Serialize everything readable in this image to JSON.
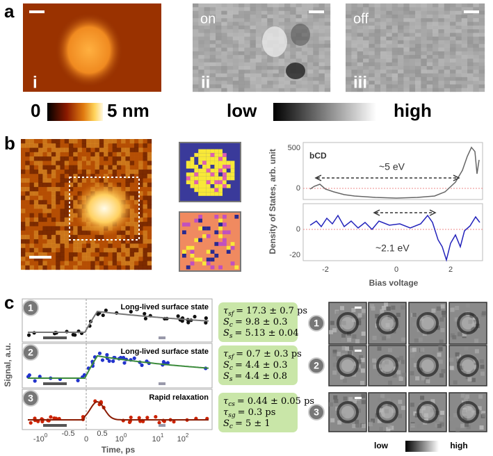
{
  "panel_a": {
    "label": "a",
    "images": [
      {
        "numeral": "i"
      },
      {
        "numeral": "ii",
        "state": "on"
      },
      {
        "numeral": "iii",
        "state": "off"
      }
    ],
    "colorbars": [
      {
        "min": "0",
        "max": "5 nm"
      },
      {
        "min": "low",
        "max": "high"
      }
    ]
  },
  "panel_b": {
    "label": "b",
    "plot": {
      "tag": "bCD",
      "ylabel": "Density of States, arb. unit",
      "xlabel": "Bias voltage",
      "top_yticks": [
        "500",
        "0"
      ],
      "bottom_yticks": [
        "0",
        "-20"
      ],
      "xticks": [
        "-2",
        "0",
        "2"
      ],
      "gaps": [
        "~5 eV",
        "~2.1 eV"
      ]
    }
  },
  "panel_c": {
    "label": "c",
    "ylabel": "Signal, a.u.",
    "xlabel": "Time, ps",
    "xticks": [
      {
        "text": "-10",
        "sup": "0"
      },
      {
        "text": "-0.5"
      },
      {
        "text": "0"
      },
      {
        "text": "0.5"
      },
      {
        "text": "10",
        "sup": "0"
      },
      {
        "text": "10",
        "sup": "1"
      },
      {
        "text": "10",
        "sup": "2"
      }
    ],
    "traces": [
      {
        "marker": "1",
        "title": "Long-lived surface state",
        "params": [
          {
            "symbol": "τ",
            "sub": "sf",
            "value": "= 17.3 ± 0.7 ps"
          },
          {
            "symbol": "S",
            "sub": "c",
            "value": "= 9.8 ± 0.3"
          },
          {
            "symbol": "S",
            "sub": "s",
            "value": "= 5.13 ± 0.04"
          }
        ]
      },
      {
        "marker": "2",
        "title": "Long-lived surface state",
        "params": [
          {
            "symbol": "τ",
            "sub": "sf",
            "value": "= 0.7 ± 0.3 ps"
          },
          {
            "symbol": "S",
            "sub": "c",
            "value": "= 4.4 ± 0.3"
          },
          {
            "symbol": "S",
            "sub": "s",
            "value": "= 4.4 ± 0.8"
          }
        ]
      },
      {
        "marker": "3",
        "title": "Rapid relaxation",
        "params": [
          {
            "symbol": "τ",
            "sub": "cs",
            "value": "= 0.44 ± 0.05 ps"
          },
          {
            "symbol": "τ",
            "sub": "sg",
            "value": "= 0.3 ps"
          },
          {
            "symbol": "S",
            "sub": "c",
            "value": "= 5 ± 1"
          }
        ]
      }
    ],
    "image_rows": [
      "1",
      "2",
      "3"
    ],
    "colorbar": {
      "min": "low",
      "max": "high"
    }
  }
}
